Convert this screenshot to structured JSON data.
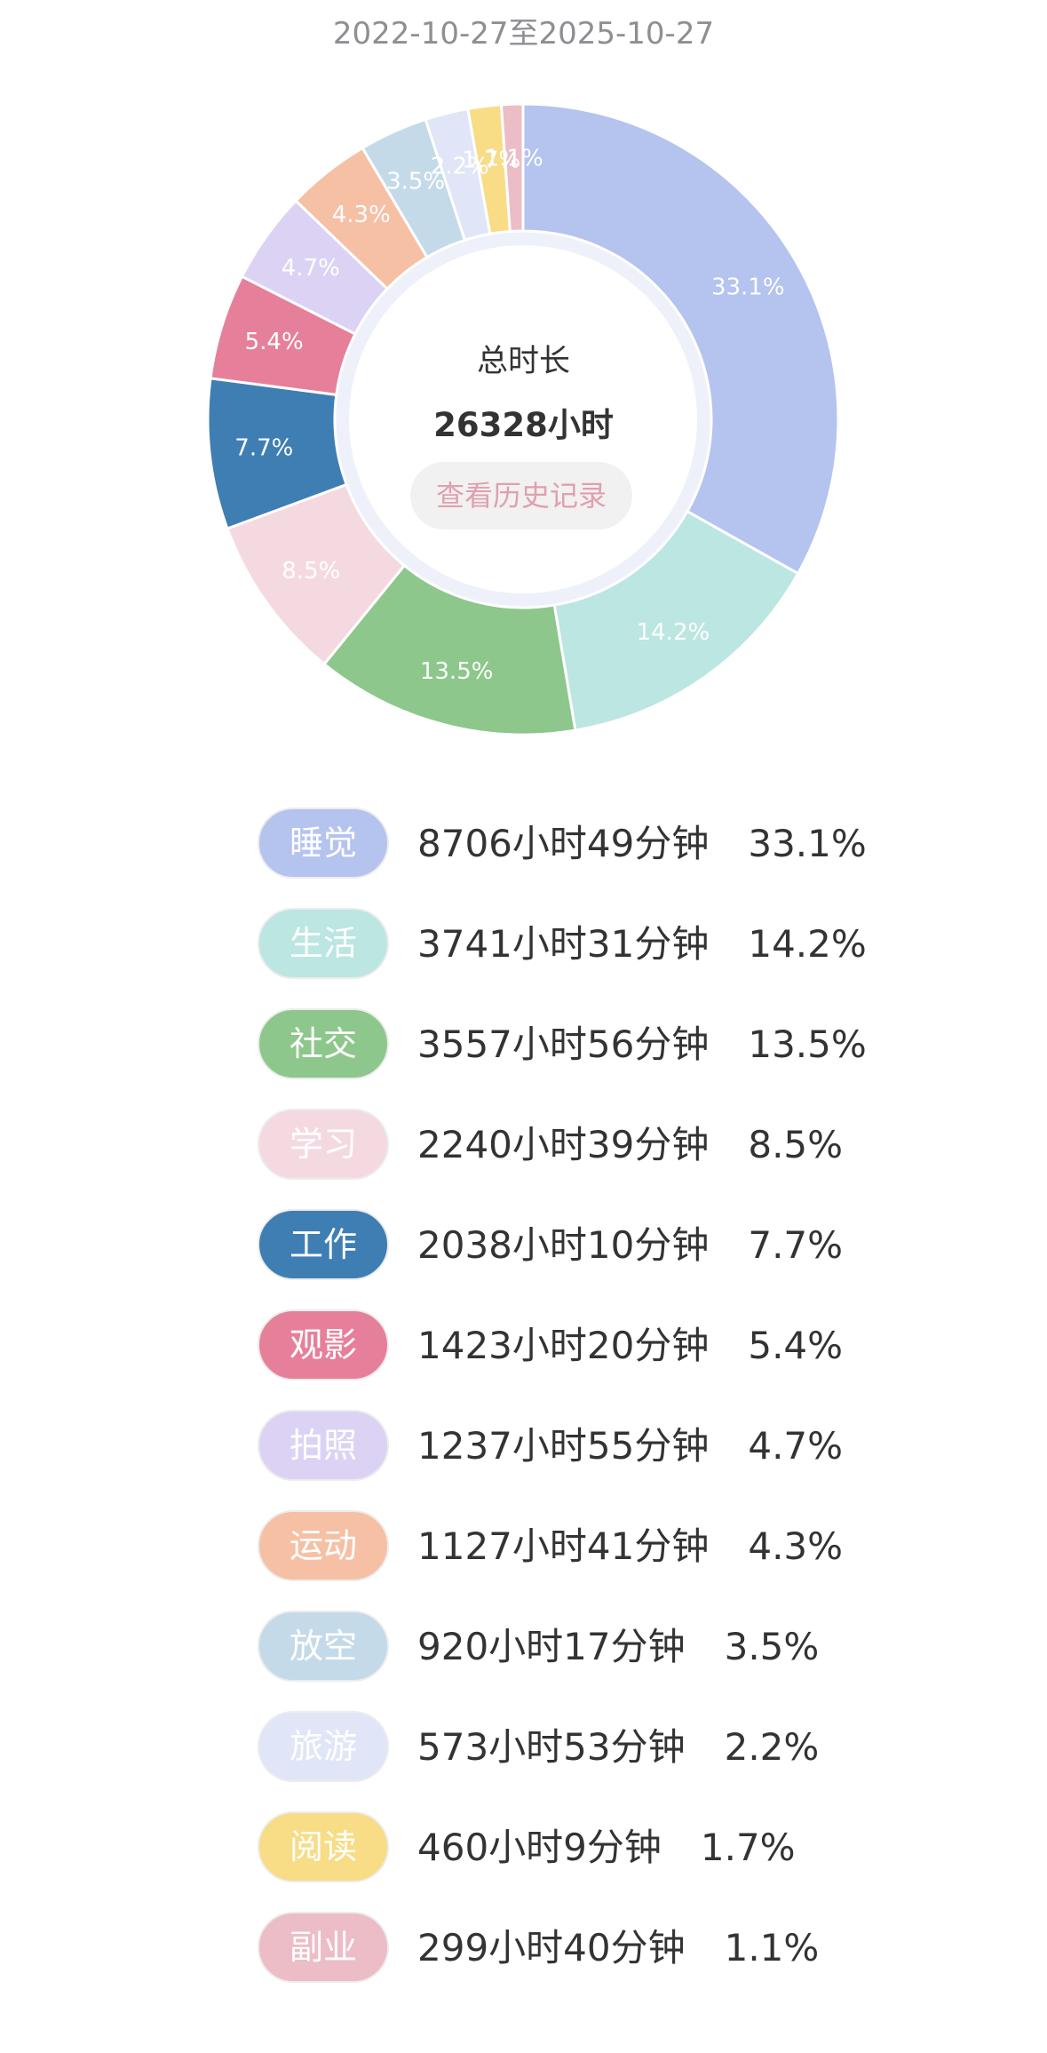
{
  "date_range": "2022-10-27至2025-10-27",
  "center": {
    "title": "总时长",
    "total": "26328小时",
    "history_button": "查看历史记录"
  },
  "chart_data": {
    "type": "pie",
    "donut": true,
    "start_angle_deg": 0,
    "direction": "clockwise",
    "slices": [
      {
        "label": "睡觉",
        "value": 33.1,
        "duration": "8706小时49分钟",
        "pct": "33.1%",
        "color": "#b5c3ef",
        "text_color": "#ffffff"
      },
      {
        "label": "生活",
        "value": 14.2,
        "duration": "3741小时31分钟",
        "pct": "14.2%",
        "color": "#bce6e1",
        "text_color": "#ffffff"
      },
      {
        "label": "社交",
        "value": 13.5,
        "duration": "3557小时56分钟",
        "pct": "13.5%",
        "color": "#8dc78c",
        "text_color": "#ffffff"
      },
      {
        "label": "学习",
        "value": 8.5,
        "duration": "2240小时39分钟",
        "pct": "8.5%",
        "color": "#f5d9e1",
        "text_color": "#ffffff"
      },
      {
        "label": "工作",
        "value": 7.7,
        "duration": "2038小时10分钟",
        "pct": "7.7%",
        "color": "#3f7eb3",
        "text_color": "#ffffff"
      },
      {
        "label": "观影",
        "value": 5.4,
        "duration": "1423小时20分钟",
        "pct": "5.4%",
        "color": "#e6809a",
        "text_color": "#ffffff"
      },
      {
        "label": "拍照",
        "value": 4.7,
        "duration": "1237小时55分钟",
        "pct": "4.7%",
        "color": "#dcd3f4",
        "text_color": "#ffffff"
      },
      {
        "label": "运动",
        "value": 4.3,
        "duration": "1127小时41分钟",
        "pct": "4.3%",
        "color": "#f6c0a5",
        "text_color": "#ffffff"
      },
      {
        "label": "放空",
        "value": 3.5,
        "duration": "920小时17分钟",
        "pct": "3.5%",
        "color": "#c4dae8",
        "text_color": "#ffffff"
      },
      {
        "label": "旅游",
        "value": 2.2,
        "duration": "573小时53分钟",
        "pct": "2.2%",
        "color": "#e0e6f7",
        "text_color": "#ffffff"
      },
      {
        "label": "阅读",
        "value": 1.7,
        "duration": "460小时9分钟",
        "pct": "1.7%",
        "color": "#f8dc86",
        "text_color": "#ffffff"
      },
      {
        "label": "副业",
        "value": 1.1,
        "duration": "299小时40分钟",
        "pct": "1.1%",
        "color": "#ecbcc7",
        "text_color": "#ffffff"
      }
    ]
  }
}
